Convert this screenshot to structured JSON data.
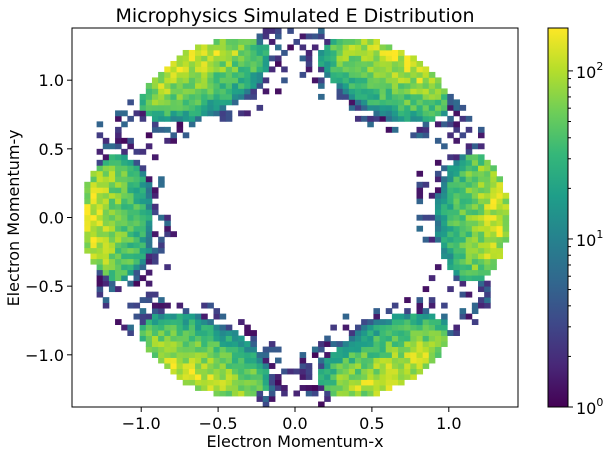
{
  "chart_data": {
    "type": "heatmap",
    "title": "Microphysics Simulated E Distribution",
    "xlabel": "Electron Momentum-x",
    "ylabel": "Electron Momentum-y",
    "xlim": [
      -1.45,
      1.45
    ],
    "ylim": [
      -1.38,
      1.38
    ],
    "x_ticks": [
      {
        "value": -1.0,
        "label": "−1.0"
      },
      {
        "value": -0.5,
        "label": "−0.5"
      },
      {
        "value": 0.0,
        "label": "0.0"
      },
      {
        "value": 0.5,
        "label": "0.5"
      },
      {
        "value": 1.0,
        "label": "1.0"
      }
    ],
    "y_ticks": [
      {
        "value": 1.0,
        "label": "1.0"
      },
      {
        "value": 0.5,
        "label": "0.5"
      },
      {
        "value": 0.0,
        "label": "0.0"
      },
      {
        "value": -0.5,
        "label": "−0.5"
      },
      {
        "value": -1.0,
        "label": "−1.0"
      }
    ],
    "colorbar": {
      "scale": "log",
      "colormap": "viridis",
      "range": [
        1,
        180
      ],
      "ticks": [
        {
          "value": 1,
          "base": "10",
          "exp": "0"
        },
        {
          "value": 10,
          "base": "10",
          "exp": "1"
        },
        {
          "value": 100,
          "base": "10",
          "exp": "2"
        }
      ]
    },
    "clusters": [
      {
        "center": [
          -1.15,
          0.0
        ],
        "angle_deg": 180
      },
      {
        "center": [
          -0.58,
          1.0
        ],
        "angle_deg": 120
      },
      {
        "center": [
          0.58,
          1.0
        ],
        "angle_deg": 60
      },
      {
        "center": [
          1.15,
          0.0
        ],
        "angle_deg": 0
      },
      {
        "center": [
          0.58,
          -1.0
        ],
        "angle_deg": -60
      },
      {
        "center": [
          -0.58,
          -1.0
        ],
        "angle_deg": -120
      }
    ],
    "colors": {
      "viridis": [
        "#440154",
        "#482878",
        "#3e4989",
        "#31688e",
        "#26828e",
        "#1f9e89",
        "#35b779",
        "#6ece58",
        "#b5de2b",
        "#fde725"
      ]
    }
  }
}
